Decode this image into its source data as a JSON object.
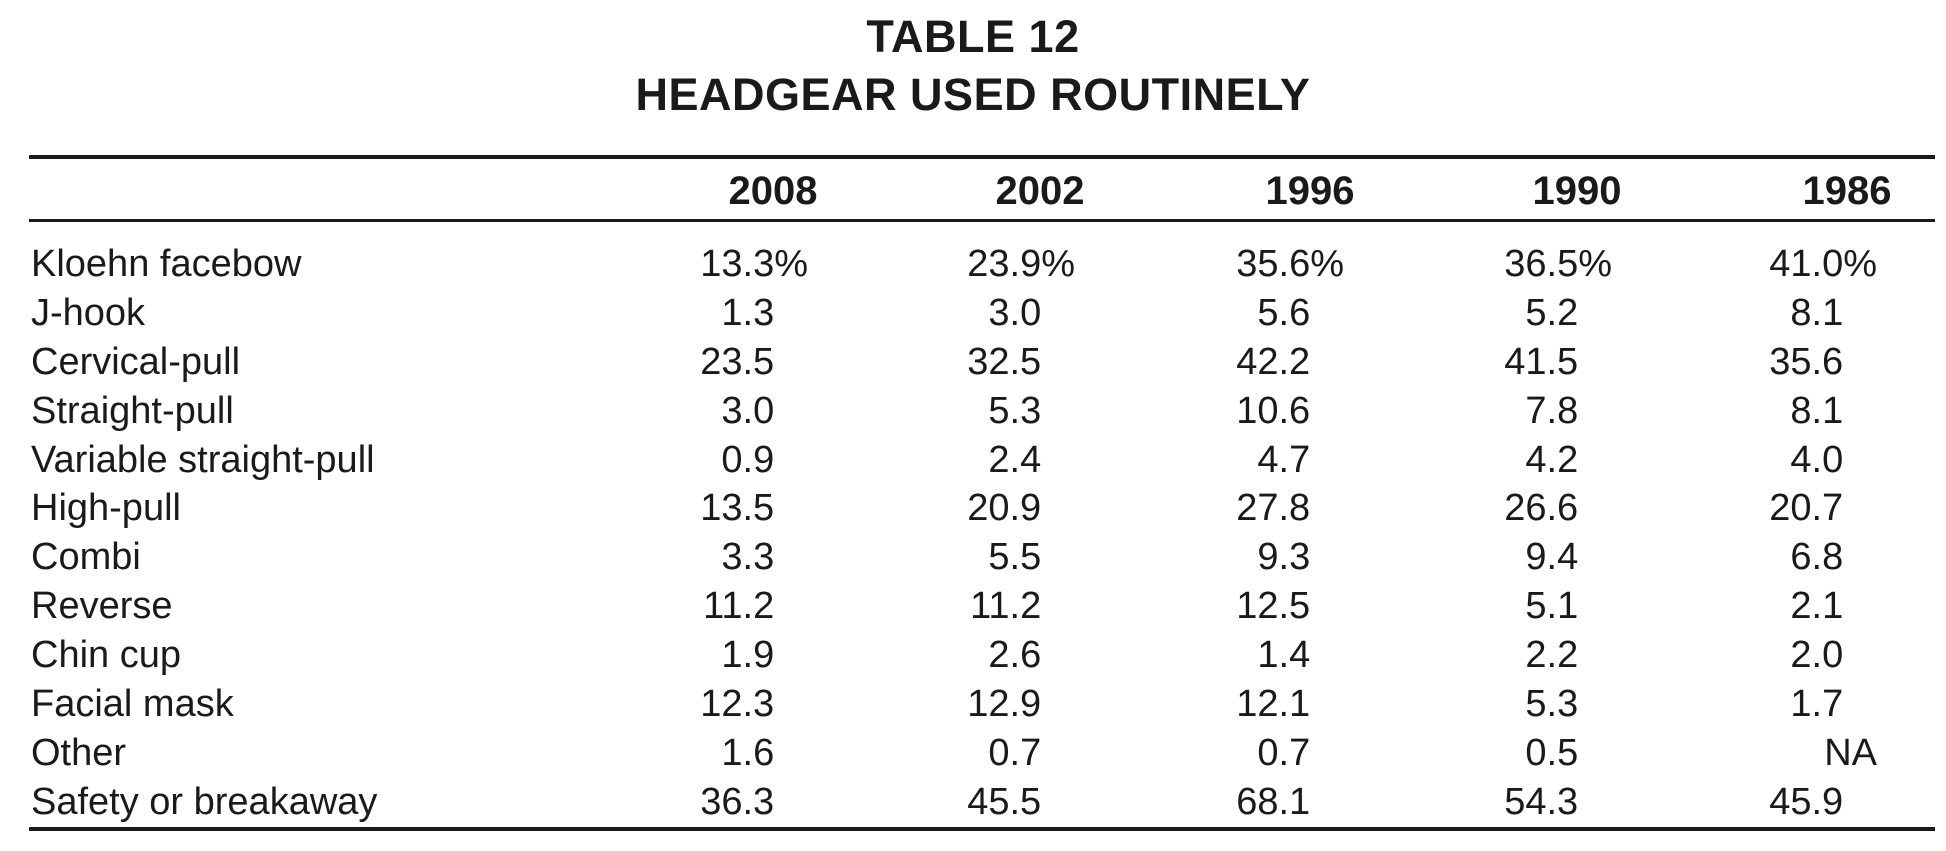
{
  "table": {
    "title_line1": "TABLE 12",
    "title_line2": "HEADGEAR USED ROUTINELY",
    "columns": [
      "2008",
      "2002",
      "1996",
      "1990",
      "1986"
    ],
    "rows": [
      {
        "label": "Kloehn facebow",
        "values": [
          "13.3%",
          "23.9%",
          "35.6%",
          "36.5%",
          "41.0%"
        ]
      },
      {
        "label": "J-hook",
        "values": [
          "1.3",
          "3.0",
          "5.6",
          "5.2",
          "8.1"
        ]
      },
      {
        "label": "Cervical-pull",
        "values": [
          "23.5",
          "32.5",
          "42.2",
          "41.5",
          "35.6"
        ]
      },
      {
        "label": "Straight-pull",
        "values": [
          "3.0",
          "5.3",
          "10.6",
          "7.8",
          "8.1"
        ]
      },
      {
        "label": "Variable straight-pull",
        "values": [
          "0.9",
          "2.4",
          "4.7",
          "4.2",
          "4.0"
        ]
      },
      {
        "label": "High-pull",
        "values": [
          "13.5",
          "20.9",
          "27.8",
          "26.6",
          "20.7"
        ]
      },
      {
        "label": "Combi",
        "values": [
          "3.3",
          "5.5",
          "9.3",
          "9.4",
          "6.8"
        ]
      },
      {
        "label": "Reverse",
        "values": [
          "11.2",
          "11.2",
          "12.5",
          "5.1",
          "2.1"
        ]
      },
      {
        "label": "Chin cup",
        "values": [
          "1.9",
          "2.6",
          "1.4",
          "2.2",
          "2.0"
        ]
      },
      {
        "label": "Facial mask",
        "values": [
          "12.3",
          "12.9",
          "12.1",
          "5.3",
          "1.7"
        ]
      },
      {
        "label": "Other",
        "values": [
          "1.6",
          "0.7",
          "0.7",
          "0.5",
          "NA"
        ]
      },
      {
        "label": "Safety or breakaway",
        "values": [
          "36.3",
          "45.5",
          "68.1",
          "54.3",
          "45.9"
        ]
      }
    ]
  }
}
